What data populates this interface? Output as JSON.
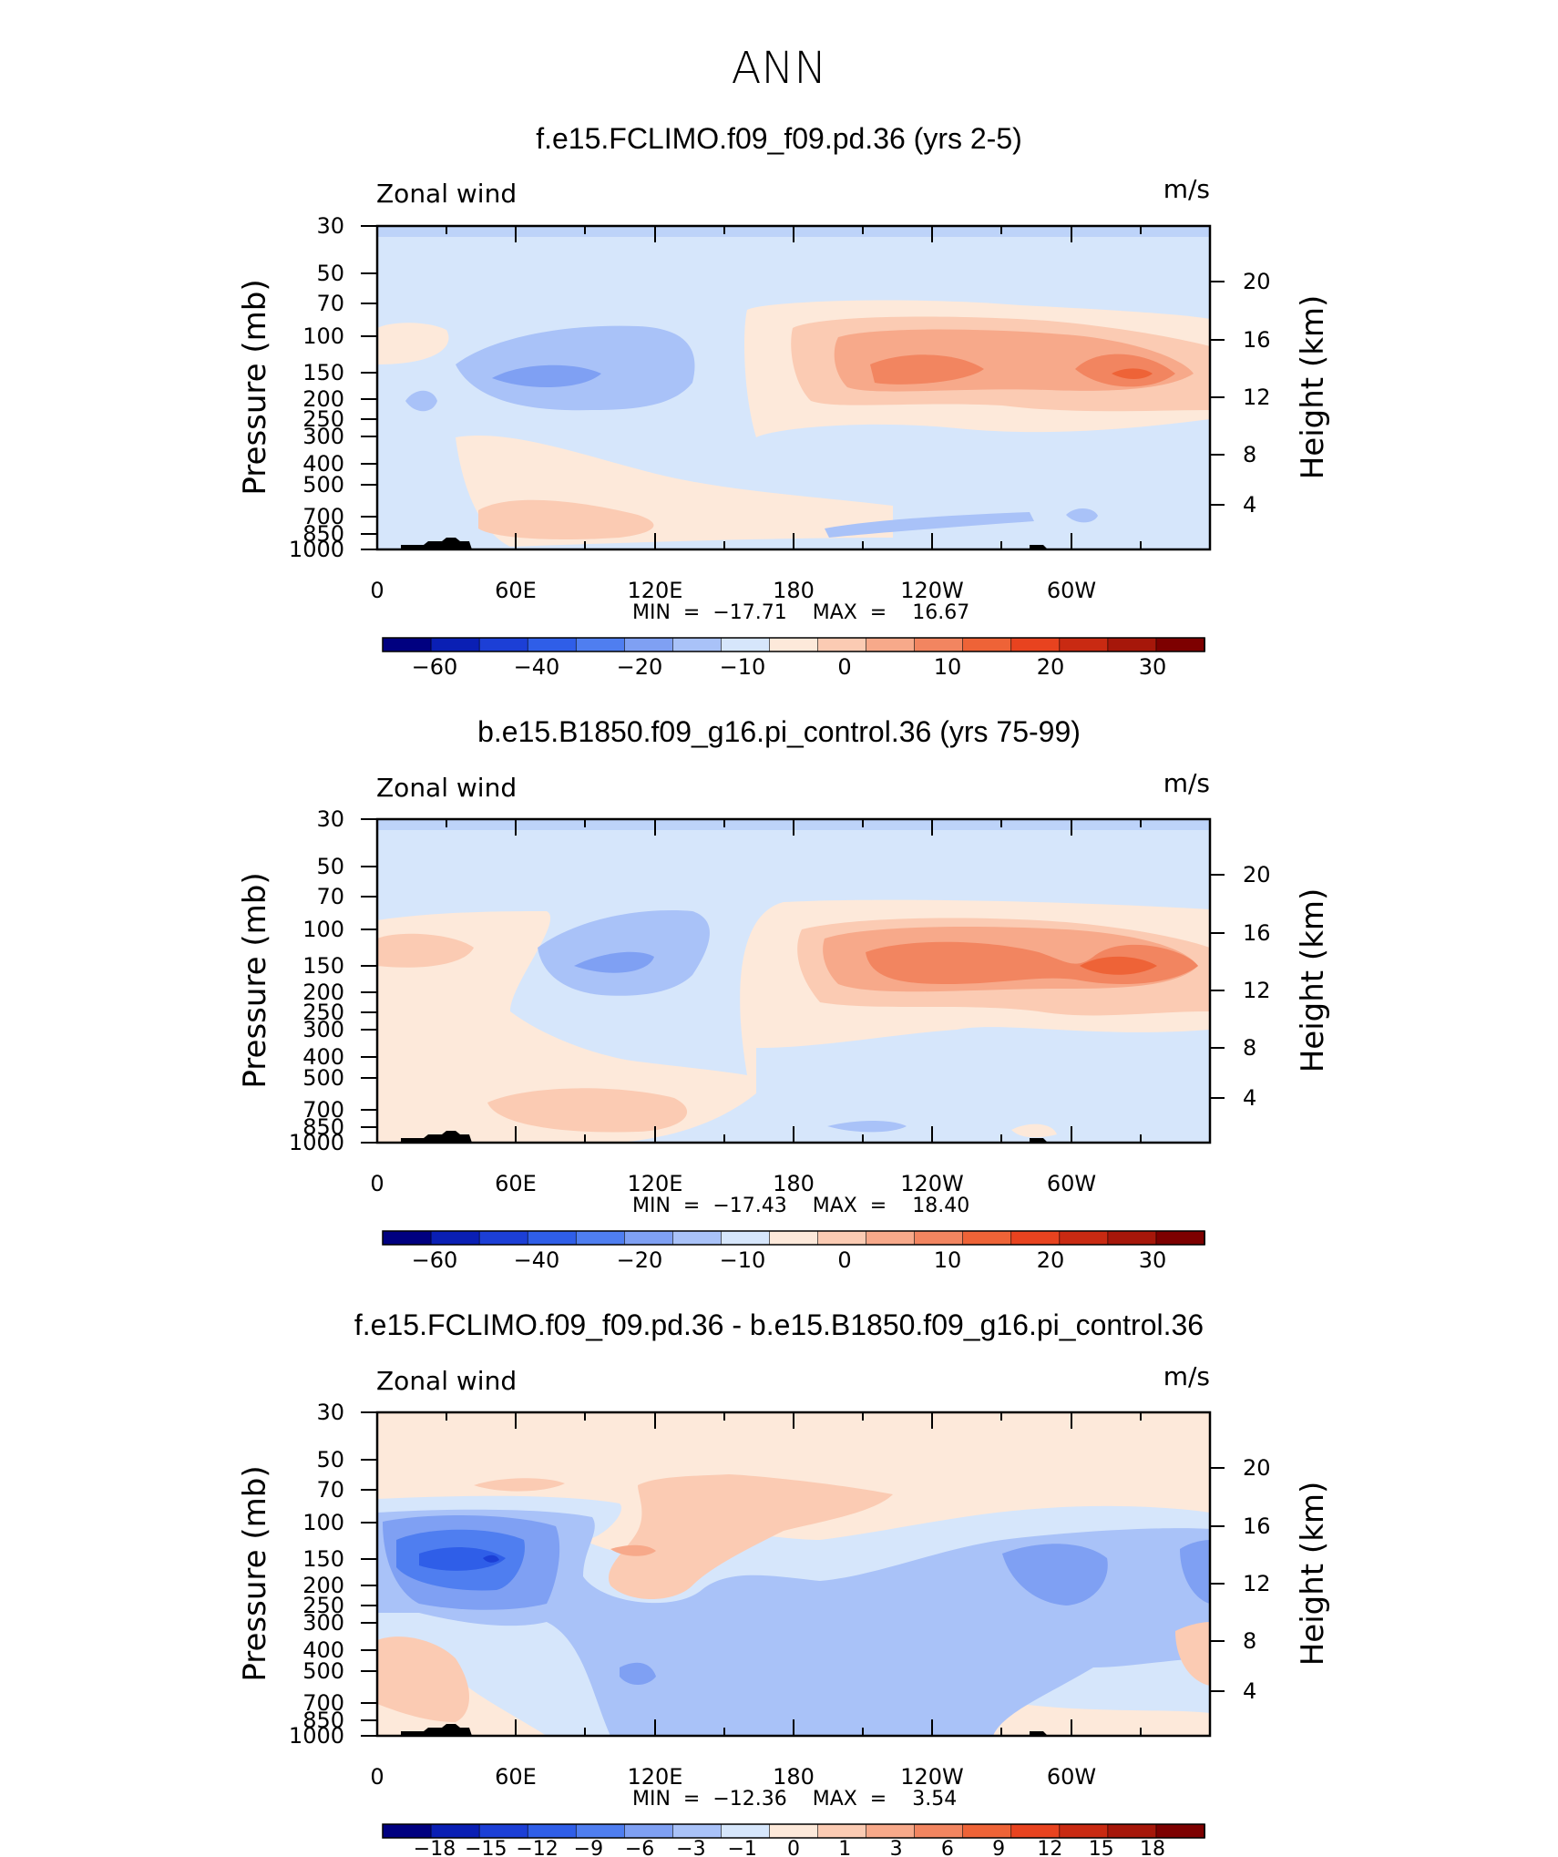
{
  "figure_title": "ANN",
  "panels": [
    {
      "title": "f.e15.FCLIMO.f09_f09.pd.36 (yrs 2-5)",
      "variable": "Zonal wind",
      "units": "m/s",
      "min_max_text": "MIN  =  −17.71    MAX  =    16.67"
    },
    {
      "title": "b.e15.B1850.f09_g16.pi_control.36 (yrs 75-99)",
      "variable": "Zonal wind",
      "units": "m/s",
      "min_max_text": "MIN  =  −17.43    MAX  =    18.40"
    },
    {
      "title": "f.e15.FCLIMO.f09_f09.pd.36 - b.e15.B1850.f09_g16.pi_control.36",
      "variable": "Zonal wind",
      "units": "m/s",
      "min_max_text": "MIN  =  −12.36    MAX  =    3.54"
    }
  ],
  "chart_data": [
    {
      "type": "contour",
      "title": "f.e15.FCLIMO.f09_f09.pd.36 (yrs 2-5)",
      "variable": "Zonal wind",
      "units": "m/s",
      "xlabel": "",
      "ylabel": "Pressure (mb)",
      "y2label": "Height (km)",
      "x_ticks": [
        "0",
        "60E",
        "120E",
        "180",
        "120W",
        "60W"
      ],
      "y_ticks": [
        "30",
        "50",
        "70",
        "100",
        "150",
        "200",
        "250",
        "300",
        "400",
        "500",
        "700",
        "850",
        "1000"
      ],
      "y2_ticks": [
        "20",
        "16",
        "12",
        "8",
        "4"
      ],
      "min": -17.71,
      "max": 16.67,
      "colorbar_labels": [
        "−60",
        "−40",
        "−20",
        "−10",
        "0",
        "10",
        "20",
        "30"
      ],
      "colorbar_colors": [
        "#000080",
        "#0a1fb4",
        "#1c3fd6",
        "#2f5ee8",
        "#4f7ef0",
        "#7fa0f3",
        "#a9c2f8",
        "#d6e6fb",
        "#fde9da",
        "#fbcbb3",
        "#f7a98a",
        "#f28560",
        "#ee6337",
        "#e8431f",
        "#c92a12",
        "#a6170a",
        "#7d0000"
      ]
    },
    {
      "type": "contour",
      "title": "b.e15.B1850.f09_g16.pi_control.36 (yrs 75-99)",
      "variable": "Zonal wind",
      "units": "m/s",
      "xlabel": "",
      "ylabel": "Pressure (mb)",
      "y2label": "Height (km)",
      "x_ticks": [
        "0",
        "60E",
        "120E",
        "180",
        "120W",
        "60W"
      ],
      "y_ticks": [
        "30",
        "50",
        "70",
        "100",
        "150",
        "200",
        "250",
        "300",
        "400",
        "500",
        "700",
        "850",
        "1000"
      ],
      "y2_ticks": [
        "20",
        "16",
        "12",
        "8",
        "4"
      ],
      "min": -17.43,
      "max": 18.4,
      "colorbar_labels": [
        "−60",
        "−40",
        "−20",
        "−10",
        "0",
        "10",
        "20",
        "30"
      ],
      "colorbar_colors": [
        "#000080",
        "#0a1fb4",
        "#1c3fd6",
        "#2f5ee8",
        "#4f7ef0",
        "#7fa0f3",
        "#a9c2f8",
        "#d6e6fb",
        "#fde9da",
        "#fbcbb3",
        "#f7a98a",
        "#f28560",
        "#ee6337",
        "#e8431f",
        "#c92a12",
        "#a6170a",
        "#7d0000"
      ]
    },
    {
      "type": "contour",
      "title": "f.e15.FCLIMO.f09_f09.pd.36 - b.e15.B1850.f09_g16.pi_control.36",
      "variable": "Zonal wind",
      "units": "m/s",
      "xlabel": "",
      "ylabel": "Pressure (mb)",
      "y2label": "Height (km)",
      "x_ticks": [
        "0",
        "60E",
        "120E",
        "180",
        "120W",
        "60W"
      ],
      "y_ticks": [
        "30",
        "50",
        "70",
        "100",
        "150",
        "200",
        "250",
        "300",
        "400",
        "500",
        "700",
        "850",
        "1000"
      ],
      "y2_ticks": [
        "20",
        "16",
        "12",
        "8",
        "4"
      ],
      "min": -12.36,
      "max": 3.54,
      "colorbar_labels": [
        "−18",
        "−15",
        "−12",
        "−9",
        "−6",
        "−3",
        "−1",
        "0",
        "1",
        "3",
        "6",
        "9",
        "12",
        "15",
        "18"
      ],
      "colorbar_colors": [
        "#000080",
        "#0a1fb4",
        "#1c3fd6",
        "#2f5ee8",
        "#4f7ef0",
        "#7fa0f3",
        "#a9c2f8",
        "#d6e6fb",
        "#fde9da",
        "#fbcbb3",
        "#f7a98a",
        "#f28560",
        "#ee6337",
        "#e8431f",
        "#c92a12",
        "#a6170a",
        "#7d0000"
      ]
    }
  ]
}
